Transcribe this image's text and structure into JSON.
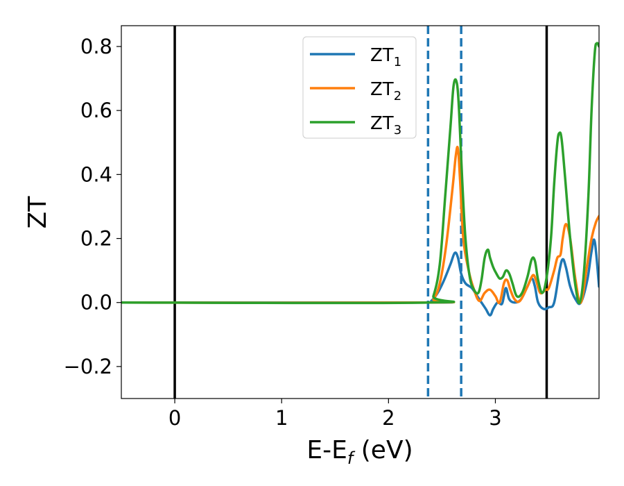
{
  "chart_data": {
    "type": "line",
    "xlabel": "E-E_f (eV)",
    "xlabel_main": "E-E",
    "xlabel_sub": "f",
    "xlabel_unit": " (eV)",
    "ylabel": "ZT",
    "xlim": [
      -0.5,
      3.97
    ],
    "ylim": [
      -0.3,
      0.865
    ],
    "xticks": [
      0,
      1,
      2,
      3
    ],
    "xtick_labels": [
      "0",
      "1",
      "2",
      "3"
    ],
    "yticks": [
      -0.2,
      0.0,
      0.2,
      0.4,
      0.6,
      0.8
    ],
    "ytick_labels": [
      "−0.2",
      "0.0",
      "0.2",
      "0.4",
      "0.6",
      "0.8"
    ],
    "grid": false,
    "legend_position": "upper center",
    "vlines": [
      {
        "x": 0.0,
        "style": "solid",
        "color": "#000000"
      },
      {
        "x": 2.37,
        "style": "dashed",
        "color": "#1f77b4"
      },
      {
        "x": 2.68,
        "style": "dashed",
        "color": "#1f77b4"
      },
      {
        "x": 3.48,
        "style": "solid",
        "color": "#000000"
      }
    ],
    "series": [
      {
        "name": "ZT_1",
        "name_main": "ZT",
        "name_sub": "1",
        "color": "#1f77b4",
        "x": [
          -0.5,
          2.36,
          2.4,
          2.46,
          2.52,
          2.58,
          2.62,
          2.65,
          2.68,
          2.72,
          2.78,
          2.83,
          2.87,
          2.91,
          2.95,
          2.98,
          3.02,
          3.06,
          3.08,
          3.1,
          3.13,
          3.18,
          3.24,
          3.3,
          3.34,
          3.37,
          3.4,
          3.45,
          3.5,
          3.55,
          3.6,
          3.63,
          3.66,
          3.7,
          3.75,
          3.8,
          3.86,
          3.9,
          3.93,
          3.97
        ],
        "y": [
          0.0,
          0.0,
          0.005,
          0.03,
          0.07,
          0.12,
          0.155,
          0.14,
          0.09,
          0.06,
          0.045,
          0.02,
          0.0,
          -0.02,
          -0.04,
          -0.02,
          0.0,
          -0.005,
          0.02,
          0.045,
          0.01,
          0.0,
          0.01,
          0.05,
          0.075,
          0.05,
          0.0,
          -0.02,
          -0.015,
          0.0,
          0.1,
          0.135,
          0.11,
          0.05,
          0.01,
          0.0,
          0.07,
          0.16,
          0.19,
          0.05
        ]
      },
      {
        "name": "ZT_2",
        "name_main": "ZT",
        "name_sub": "2",
        "color": "#ff7f0e",
        "x": [
          -0.5,
          2.37,
          2.42,
          2.48,
          2.54,
          2.6,
          2.63,
          2.65,
          2.67,
          2.7,
          2.75,
          2.8,
          2.85,
          2.9,
          2.95,
          3.0,
          3.04,
          3.08,
          3.11,
          3.14,
          3.18,
          3.23,
          3.3,
          3.35,
          3.38,
          3.42,
          3.47,
          3.5,
          3.55,
          3.58,
          3.61,
          3.63,
          3.66,
          3.7,
          3.75,
          3.8,
          3.86,
          3.9,
          3.94,
          3.97
        ],
        "y": [
          0.0,
          0.0,
          0.01,
          0.06,
          0.18,
          0.36,
          0.46,
          0.48,
          0.38,
          0.2,
          0.1,
          0.04,
          0.005,
          0.03,
          0.04,
          0.02,
          0.0,
          0.06,
          0.07,
          0.04,
          0.01,
          0.005,
          0.05,
          0.085,
          0.07,
          0.03,
          0.04,
          0.045,
          0.1,
          0.14,
          0.15,
          0.2,
          0.245,
          0.2,
          0.07,
          0.0,
          0.12,
          0.2,
          0.25,
          0.27
        ]
      },
      {
        "name": "ZT_3",
        "name_main": "ZT",
        "name_sub": "3",
        "color": "#2ca02c",
        "x": [
          -0.5,
          2.37,
          2.42,
          2.48,
          2.53,
          2.58,
          2.61,
          2.64,
          2.66,
          2.69,
          2.72,
          2.76,
          2.8,
          2.84,
          2.87,
          2.9,
          2.93,
          2.95,
          2.98,
          3.01,
          3.04,
          3.07,
          3.1,
          3.13,
          3.16,
          3.2,
          3.25,
          3.3,
          3.34,
          3.37,
          3.4,
          3.44,
          3.48,
          3.52,
          3.55,
          3.58,
          3.6,
          3.62,
          3.65,
          3.7,
          3.75,
          3.79,
          3.83,
          3.87,
          3.9,
          3.93,
          3.95,
          3.97
        ],
        "y": [
          0.0,
          0.0,
          0.02,
          0.12,
          0.33,
          0.55,
          0.68,
          0.685,
          0.6,
          0.38,
          0.2,
          0.08,
          0.04,
          0.03,
          0.07,
          0.14,
          0.165,
          0.14,
          0.11,
          0.09,
          0.075,
          0.08,
          0.1,
          0.09,
          0.06,
          0.02,
          0.03,
          0.08,
          0.135,
          0.13,
          0.07,
          0.03,
          0.08,
          0.2,
          0.37,
          0.5,
          0.53,
          0.51,
          0.4,
          0.2,
          0.05,
          0.0,
          0.1,
          0.33,
          0.6,
          0.78,
          0.81,
          0.8
        ]
      }
    ]
  }
}
